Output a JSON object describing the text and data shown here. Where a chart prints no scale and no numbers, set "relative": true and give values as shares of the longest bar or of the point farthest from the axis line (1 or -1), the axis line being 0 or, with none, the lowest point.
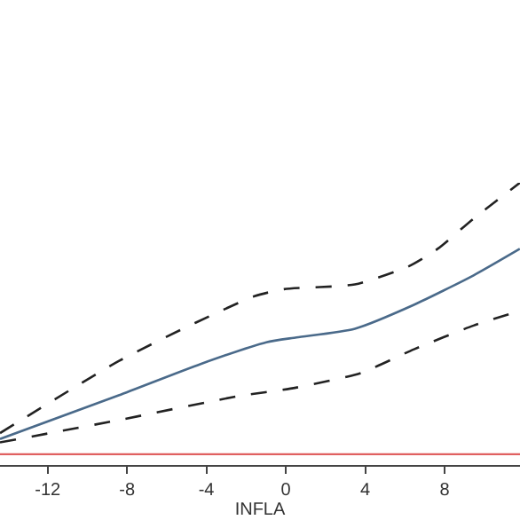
{
  "chart_data": {
    "type": "line",
    "xlabel": "INFLA",
    "relative": true,
    "xlim": [
      -14.4,
      11.8
    ],
    "xticks": [
      -12,
      -8,
      -4,
      0,
      4,
      8
    ],
    "series": [
      {
        "color": "#4a6a8a",
        "line_style": "solid",
        "x": [
          -14.4,
          -8.42,
          -4.29,
          -0.98,
          0.54,
          3.48,
          6.43,
          9.46,
          11.79
        ],
        "values": [
          0.092,
          0.247,
          0.358,
          0.435,
          0.452,
          0.483,
          0.567,
          0.672,
          0.766
        ]
      },
      {
        "color": "#222222",
        "line_style": "dashed",
        "x": [
          -14.4,
          -8.42,
          -4.55,
          -1.58,
          -0.09,
          3.48,
          6.16,
          7.65,
          9.46,
          11.79
        ],
        "values": [
          0.113,
          0.368,
          0.504,
          0.598,
          0.623,
          0.64,
          0.703,
          0.766,
          0.873,
          1
        ]
      },
      {
        "color": "#222222",
        "line_style": "dashed",
        "x": [
          -14.4,
          -8.42,
          -2.47,
          0.51,
          3.78,
          6.46,
          9.46,
          11.79
        ],
        "values": [
          0.08,
          0.159,
          0.243,
          0.274,
          0.326,
          0.41,
          0.494,
          0.546
        ]
      }
    ],
    "ref_lines": [
      {
        "axis": "y",
        "value": 0.038,
        "color": "#e06060"
      }
    ]
  }
}
